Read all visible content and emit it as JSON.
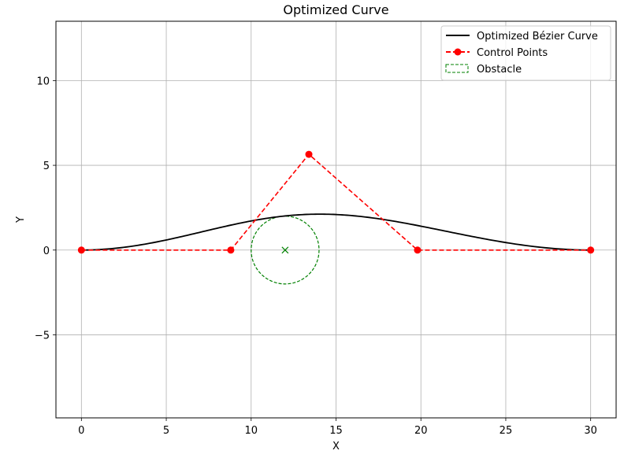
{
  "chart_data": {
    "type": "line",
    "title": "Optimized Curve",
    "xlabel": "X",
    "ylabel": "Y",
    "xlim": [
      -1.5,
      31.5
    ],
    "ylim": [
      -9.9,
      13.5
    ],
    "xticks": [
      0,
      5,
      10,
      15,
      20,
      25,
      30
    ],
    "xtick_labels": [
      "0",
      "5",
      "10",
      "15",
      "20",
      "25",
      "30"
    ],
    "yticks": [
      -5,
      0,
      5,
      10
    ],
    "ytick_labels": [
      "−5",
      "0",
      "5",
      "10"
    ],
    "grid": true,
    "legend_position": "top-right",
    "series": [
      {
        "name": "Optimized Bézier Curve",
        "kind": "bezier",
        "color": "#000000",
        "line_style": "solid"
      },
      {
        "name": "Control Points",
        "kind": "polyline-markers",
        "color": "#ff0000",
        "line_style": "dashed",
        "marker": "circle",
        "points": [
          [
            0,
            0
          ],
          [
            8.8,
            0
          ],
          [
            13.4,
            5.65
          ],
          [
            19.8,
            0
          ],
          [
            30,
            0
          ]
        ]
      },
      {
        "name": "Obstacle",
        "kind": "circle",
        "color": "#008000",
        "line_style": "dashed",
        "center": [
          12,
          0
        ],
        "radius": 2,
        "center_marker": "x"
      }
    ]
  }
}
